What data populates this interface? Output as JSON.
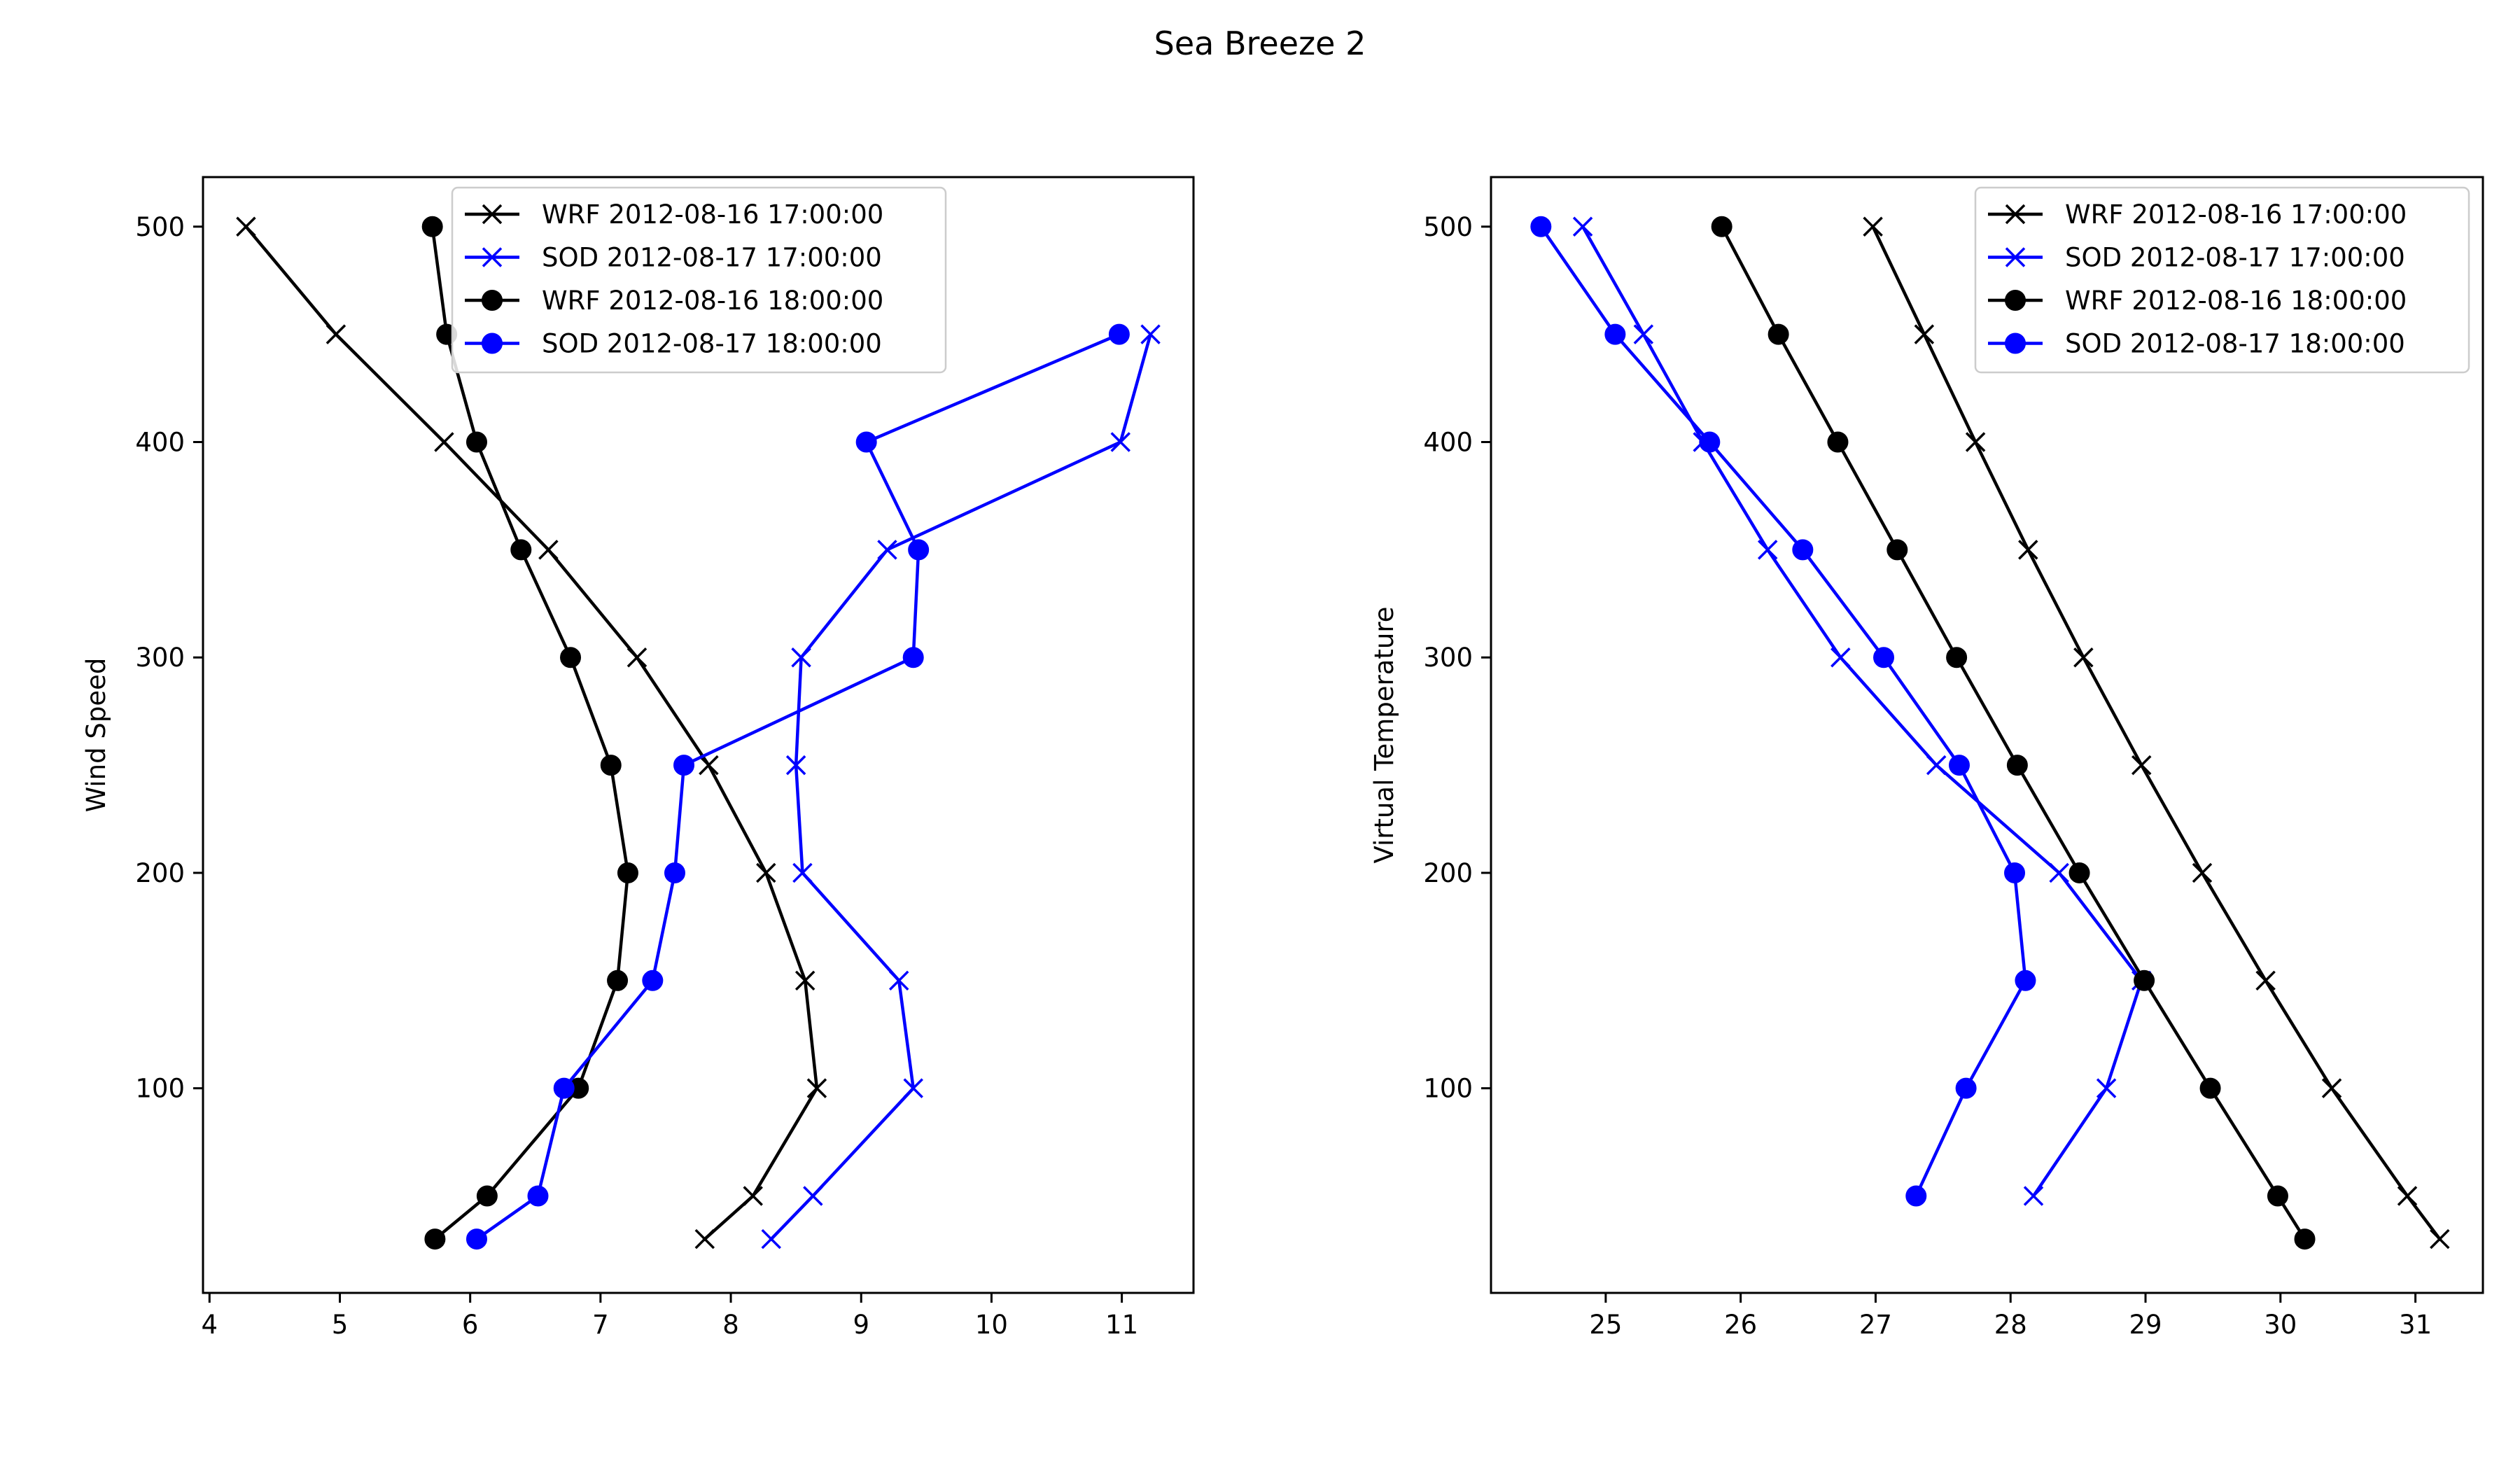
{
  "title": "Sea Breeze 2",
  "chart_data": [
    {
      "type": "line",
      "xlabel": "",
      "ylabel": "Wind Speed",
      "xlim": [
        3.95,
        11.55
      ],
      "ylim": [
        5,
        523
      ],
      "xticks": [
        4,
        5,
        6,
        7,
        8,
        9,
        10,
        11
      ],
      "yticks": [
        100,
        200,
        300,
        400,
        500
      ],
      "legend_position": "upper center",
      "grid": false,
      "series": [
        {
          "name": "WRF 2012-08-16 17:00:00",
          "color": "#000000",
          "marker": "x",
          "points": [
            [
              4.28,
              500
            ],
            [
              4.97,
              450
            ],
            [
              5.8,
              400
            ],
            [
              6.6,
              350
            ],
            [
              7.28,
              300
            ],
            [
              7.83,
              250
            ],
            [
              8.27,
              200
            ],
            [
              8.57,
              150
            ],
            [
              8.66,
              100
            ],
            [
              8.17,
              50
            ],
            [
              7.8,
              30
            ]
          ]
        },
        {
          "name": "SOD 2012-08-17 17:00:00",
          "color": "#0000ff",
          "marker": "x",
          "points": [
            [
              11.22,
              450
            ],
            [
              10.99,
              400
            ],
            [
              9.2,
              350
            ],
            [
              8.54,
              300
            ],
            [
              8.5,
              250
            ],
            [
              8.55,
              200
            ],
            [
              9.29,
              150
            ],
            [
              9.4,
              100
            ],
            [
              8.63,
              50
            ],
            [
              8.31,
              30
            ]
          ]
        },
        {
          "name": "WRF 2012-08-16 18:00:00",
          "color": "#000000",
          "marker": "o",
          "points": [
            [
              5.71,
              500
            ],
            [
              5.82,
              450
            ],
            [
              6.05,
              400
            ],
            [
              6.39,
              350
            ],
            [
              6.77,
              300
            ],
            [
              7.08,
              250
            ],
            [
              7.21,
              200
            ],
            [
              7.13,
              150
            ],
            [
              6.83,
              100
            ],
            [
              6.13,
              50
            ],
            [
              5.73,
              30
            ]
          ]
        },
        {
          "name": "SOD 2012-08-17 18:00:00",
          "color": "#0000ff",
          "marker": "o",
          "points": [
            [
              10.98,
              450
            ],
            [
              9.04,
              400
            ],
            [
              9.44,
              350
            ],
            [
              9.4,
              300
            ],
            [
              7.64,
              250
            ],
            [
              7.57,
              200
            ],
            [
              7.4,
              150
            ],
            [
              6.72,
              100
            ],
            [
              6.52,
              50
            ],
            [
              6.05,
              30
            ]
          ]
        }
      ]
    },
    {
      "type": "line",
      "xlabel": "",
      "ylabel": "Virtual Temperature",
      "xlim": [
        24.15,
        31.5
      ],
      "ylim": [
        5,
        523
      ],
      "xticks": [
        25,
        26,
        27,
        28,
        29,
        30,
        31
      ],
      "yticks": [
        100,
        200,
        300,
        400,
        500
      ],
      "legend_position": "upper right",
      "grid": false,
      "series": [
        {
          "name": "WRF 2012-08-16 17:00:00",
          "color": "#000000",
          "marker": "x",
          "points": [
            [
              26.98,
              500
            ],
            [
              27.36,
              450
            ],
            [
              27.74,
              400
            ],
            [
              28.13,
              350
            ],
            [
              28.54,
              300
            ],
            [
              28.97,
              250
            ],
            [
              29.42,
              200
            ],
            [
              29.89,
              150
            ],
            [
              30.38,
              100
            ],
            [
              30.94,
              50
            ],
            [
              31.18,
              30
            ]
          ]
        },
        {
          "name": "SOD 2012-08-17 17:00:00",
          "color": "#0000ff",
          "marker": "x",
          "points": [
            [
              24.83,
              500
            ],
            [
              25.28,
              450
            ],
            [
              25.72,
              400
            ],
            [
              26.2,
              350
            ],
            [
              26.74,
              300
            ],
            [
              27.45,
              250
            ],
            [
              28.36,
              200
            ],
            [
              28.97,
              150
            ],
            [
              28.71,
              100
            ],
            [
              28.17,
              50
            ]
          ]
        },
        {
          "name": "WRF 2012-08-16 18:00:00",
          "color": "#000000",
          "marker": "o",
          "points": [
            [
              25.86,
              500
            ],
            [
              26.28,
              450
            ],
            [
              26.72,
              400
            ],
            [
              27.16,
              350
            ],
            [
              27.6,
              300
            ],
            [
              28.05,
              250
            ],
            [
              28.51,
              200
            ],
            [
              28.99,
              150
            ],
            [
              29.48,
              100
            ],
            [
              29.98,
              50
            ],
            [
              30.18,
              30
            ]
          ]
        },
        {
          "name": "SOD 2012-08-17 18:00:00",
          "color": "#0000ff",
          "marker": "o",
          "points": [
            [
              24.52,
              500
            ],
            [
              25.07,
              450
            ],
            [
              25.77,
              400
            ],
            [
              26.46,
              350
            ],
            [
              27.06,
              300
            ],
            [
              27.62,
              250
            ],
            [
              28.03,
              200
            ],
            [
              28.11,
              150
            ],
            [
              27.67,
              100
            ],
            [
              27.3,
              50
            ]
          ]
        }
      ]
    }
  ]
}
